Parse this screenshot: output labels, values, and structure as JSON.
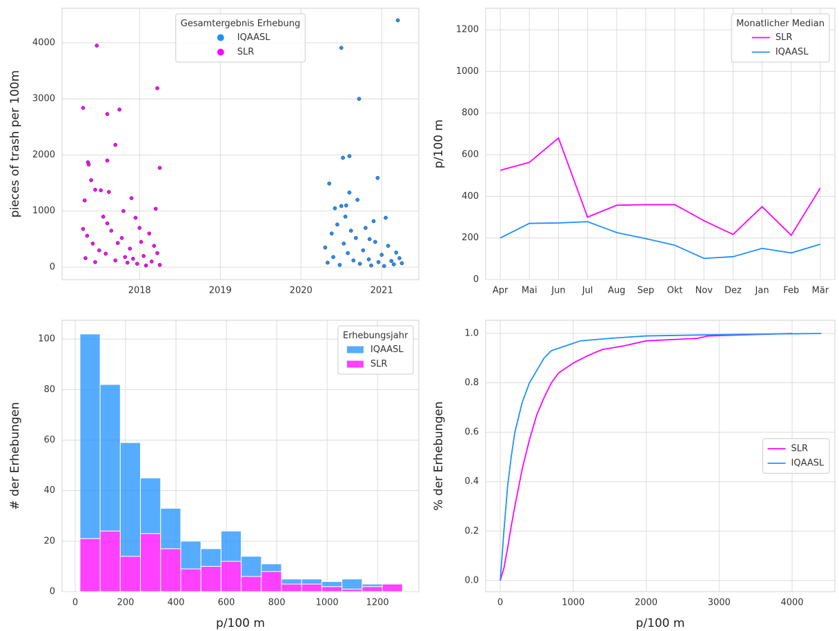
{
  "chart_data": [
    {
      "type": "scatter",
      "ylabel": "pieces of trash per 100m",
      "xlim": [
        2017.04,
        2021.46
      ],
      "xticks": [
        2018,
        2019,
        2020,
        2021
      ],
      "ylim": [
        -222,
        4615
      ],
      "yticks": [
        0,
        1000,
        2000,
        3000,
        4000
      ],
      "grid": true,
      "legend_title": "Gesamtergebnis Erhebung",
      "legend_loc": "upper center",
      "series": [
        {
          "name": "IQAASL",
          "color": "#1e90ff",
          "x": [
            2021.2,
            2020.5,
            2020.72,
            2020.6,
            2020.52,
            2020.95,
            2020.35,
            2020.6,
            2020.7,
            2020.5,
            2020.56,
            2020.42,
            2021.05,
            2020.9,
            2020.3,
            2020.33,
            2020.38,
            2020.4,
            2020.45,
            2020.48,
            2020.53,
            2020.58,
            2020.62,
            2020.65,
            2020.68,
            2020.73,
            2020.77,
            2020.8,
            2020.84,
            2020.87,
            2020.92,
            2020.96,
            2021.0,
            2021.03,
            2021.08,
            2021.12,
            2021.15,
            2021.18,
            2021.22,
            2021.25,
            2020.55,
            2020.85
          ],
          "values": [
            4400,
            3910,
            3000,
            1980,
            1950,
            1590,
            1490,
            1330,
            1200,
            1090,
            1100,
            1050,
            880,
            820,
            350,
            80,
            600,
            180,
            760,
            40,
            420,
            250,
            650,
            120,
            520,
            60,
            300,
            700,
            140,
            30,
            450,
            90,
            220,
            20,
            380,
            110,
            50,
            260,
            160,
            70,
            900,
            500
          ]
        },
        {
          "name": "SLR",
          "color": "#ff00ff",
          "x": [
            2017.47,
            2017.3,
            2017.6,
            2017.75,
            2018.22,
            2017.7,
            2017.36,
            2017.37,
            2017.6,
            2018.25,
            2017.4,
            2017.45,
            2017.52,
            2017.62,
            2017.32,
            2017.9,
            2018.2,
            2017.8,
            2017.55,
            2017.95,
            2017.3,
            2017.35,
            2017.42,
            2017.5,
            2017.58,
            2017.65,
            2017.7,
            2017.78,
            2017.85,
            2017.88,
            2017.92,
            2017.97,
            2018.02,
            2018.05,
            2018.08,
            2018.12,
            2018.15,
            2018.18,
            2018.22,
            2018.25,
            2017.33,
            2017.45,
            2017.6,
            2017.73,
            2017.82,
            2018.0
          ],
          "values": [
            3950,
            2840,
            2730,
            2810,
            3190,
            2180,
            1870,
            1830,
            1900,
            1770,
            1550,
            1380,
            1370,
            1340,
            1190,
            1230,
            1040,
            1000,
            900,
            880,
            680,
            560,
            420,
            300,
            240,
            650,
            120,
            520,
            80,
            330,
            150,
            60,
            450,
            200,
            30,
            600,
            100,
            380,
            250,
            40,
            160,
            90,
            780,
            430,
            180,
            700
          ]
        }
      ]
    },
    {
      "type": "line",
      "ylabel": "p/100 m",
      "categories": [
        "Apr",
        "Mai",
        "Jun",
        "Jul",
        "Aug",
        "Sep",
        "Okt",
        "Nov",
        "Dez",
        "Jan",
        "Feb",
        "Mär"
      ],
      "ylim": [
        0,
        1303
      ],
      "yticks": [
        0,
        200,
        400,
        600,
        800,
        1000,
        1200
      ],
      "grid": true,
      "legend_title": "Monatlicher Median",
      "legend_loc": "upper right",
      "series": [
        {
          "name": "SLR",
          "color": "#ff00ff",
          "values": [
            525,
            563,
            680,
            300,
            357,
            360,
            360,
            283,
            217,
            350,
            213,
            440
          ]
        },
        {
          "name": "IQAASL",
          "color": "#1e90ff",
          "values": [
            200,
            270,
            272,
            278,
            226,
            197,
            165,
            102,
            110,
            150,
            128,
            170
          ]
        }
      ]
    },
    {
      "type": "histogram",
      "xlabel": "p/100 m",
      "ylabel": "# der Erhebungen",
      "bins": [
        19,
        99,
        179,
        259,
        339,
        419,
        499,
        579,
        659,
        739,
        819,
        899,
        979,
        1059,
        1139,
        1219,
        1299
      ],
      "xlim": [
        -52,
        1364
      ],
      "xticks": [
        0,
        200,
        400,
        600,
        800,
        1000,
        1200
      ],
      "ylim": [
        0,
        107.4
      ],
      "yticks": [
        0,
        20,
        40,
        60,
        80,
        100
      ],
      "grid": true,
      "legend_title": "Erhebungsjahr",
      "legend_loc": "upper right",
      "series": [
        {
          "name": "IQAASL",
          "color": "#1e90ff",
          "values": [
            81,
            58,
            45,
            22,
            16,
            11,
            7,
            12,
            8,
            3,
            2,
            2,
            2,
            4,
            1,
            0
          ]
        },
        {
          "name": "SLR",
          "color": "#ff00ff",
          "values": [
            21,
            24,
            14,
            23,
            17,
            9,
            10,
            12,
            6,
            8,
            3,
            3,
            2,
            1,
            2,
            3
          ]
        }
      ]
    },
    {
      "type": "ecdf",
      "xlabel": "p/100 m",
      "ylabel": "% der Erhebungen",
      "xlim": [
        -199,
        4586
      ],
      "xticks": [
        0,
        1000,
        2000,
        3000,
        4000
      ],
      "ylim": [
        -0.045,
        1.053
      ],
      "yticks": [
        {
          "value": 0,
          "label": "0.0"
        },
        0.2,
        0.4,
        0.6,
        0.8,
        {
          "value": 1,
          "label": "1.0"
        }
      ],
      "grid": true,
      "legend_loc": "center right",
      "series": [
        {
          "name": "SLR",
          "color": "#ff00ff",
          "x": [
            0,
            50,
            100,
            150,
            200,
            300,
            400,
            500,
            600,
            700,
            800,
            1000,
            1200,
            1400,
            1700,
            2000,
            2700,
            2850,
            4000
          ],
          "values": [
            0,
            0.05,
            0.13,
            0.22,
            0.3,
            0.45,
            0.57,
            0.67,
            0.74,
            0.8,
            0.84,
            0.88,
            0.91,
            0.935,
            0.95,
            0.97,
            0.98,
            0.99,
            1
          ]
        },
        {
          "name": "IQAASL",
          "color": "#1e90ff",
          "x": [
            0,
            50,
            100,
            150,
            200,
            300,
            400,
            500,
            600,
            700,
            900,
            1100,
            1500,
            2000,
            3000,
            4400
          ],
          "values": [
            0,
            0.2,
            0.38,
            0.5,
            0.6,
            0.72,
            0.8,
            0.85,
            0.9,
            0.93,
            0.95,
            0.97,
            0.98,
            0.99,
            0.995,
            1
          ]
        }
      ]
    }
  ]
}
